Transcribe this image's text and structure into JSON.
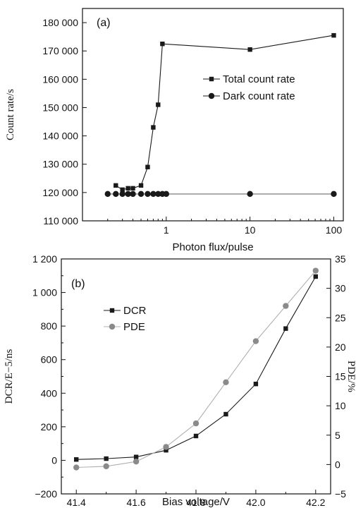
{
  "chart_data": [
    {
      "type": "line",
      "panel_label": "(a)",
      "xlabel": "Photon flux/pulse",
      "ylabel": "Count rate/s",
      "x_scale": "log",
      "xlim": [
        0.1,
        130
      ],
      "ylim": [
        110000,
        185000
      ],
      "x_ticks": [
        1,
        10,
        100
      ],
      "x_tick_labels": [
        "1",
        "10",
        "100"
      ],
      "y_ticks": [
        110000,
        120000,
        130000,
        140000,
        150000,
        160000,
        170000,
        180000
      ],
      "y_tick_labels": [
        "110 000",
        "120 000",
        "130 000",
        "140 000",
        "150 000",
        "160 000",
        "170 000",
        "180 000"
      ],
      "grid": false,
      "legend_position": "right-middle",
      "series": [
        {
          "name": "Total count rate",
          "marker": "square",
          "color": "#1a1a1a",
          "x": [
            0.25,
            0.3,
            0.35,
            0.4,
            0.5,
            0.6,
            0.7,
            0.8,
            0.9,
            10,
            100
          ],
          "y": [
            122500,
            121000,
            121500,
            121500,
            122500,
            129000,
            143000,
            151000,
            172500,
            170500,
            175500
          ]
        },
        {
          "name": "Dark count rate",
          "marker": "circle",
          "color": "#1a1a1a",
          "x": [
            0.2,
            0.25,
            0.3,
            0.35,
            0.4,
            0.5,
            0.6,
            0.7,
            0.8,
            0.9,
            1.0,
            10,
            100
          ],
          "y": [
            119500,
            119500,
            119500,
            119500,
            119500,
            119500,
            119500,
            119500,
            119500,
            119500,
            119500,
            119500,
            119500
          ]
        }
      ]
    },
    {
      "type": "line",
      "panel_label": "(b)",
      "xlabel": "Bias voltage/V",
      "ylabel": "DCR/E−5/ns",
      "y2label": "PDE/%",
      "xlim": [
        41.35,
        42.25
      ],
      "ylim": [
        -200,
        1200
      ],
      "y2lim": [
        -5,
        35
      ],
      "x_ticks": [
        41.4,
        41.6,
        41.8,
        42.0,
        42.2
      ],
      "x_tick_labels": [
        "41.4",
        "41.6",
        "41.8",
        "42.0",
        "42.2"
      ],
      "y_ticks": [
        -200,
        0,
        200,
        400,
        600,
        800,
        1000,
        1200
      ],
      "y_tick_labels": [
        "−200",
        "0",
        "200",
        "400",
        "600",
        "800",
        "1 000",
        "1 200"
      ],
      "y2_ticks": [
        -5,
        0,
        5,
        10,
        15,
        20,
        25,
        30,
        35
      ],
      "y2_tick_labels": [
        "−5",
        "0",
        "5",
        "10",
        "15",
        "20",
        "25",
        "30",
        "35"
      ],
      "grid": false,
      "legend_position": "top-left",
      "series": [
        {
          "name": "DCR",
          "axis": "left",
          "marker": "square",
          "color": "#1a1a1a",
          "x": [
            41.4,
            41.5,
            41.6,
            41.7,
            41.8,
            41.9,
            42.0,
            42.1,
            42.2
          ],
          "y": [
            5,
            10,
            20,
            60,
            145,
            275,
            455,
            785,
            1095
          ]
        },
        {
          "name": "PDE",
          "axis": "right",
          "marker": "circle",
          "color": "#8a8a8a",
          "x": [
            41.4,
            41.5,
            41.6,
            41.7,
            41.8,
            41.9,
            42.0,
            42.1,
            42.2
          ],
          "y": [
            -0.5,
            -0.3,
            0.5,
            3.0,
            7.0,
            14.0,
            21.0,
            27.0,
            33.0
          ]
        }
      ]
    }
  ]
}
